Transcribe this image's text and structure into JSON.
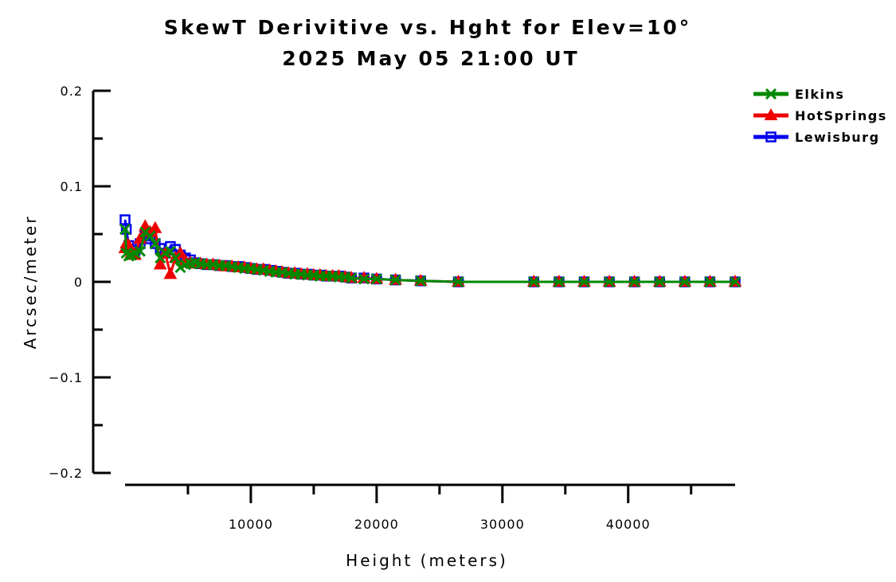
{
  "chart_data": {
    "type": "line",
    "title": "SkewT Derivitive vs. Hght for Elev=10°",
    "subtitle": "2025 May 05 21:00 UT",
    "xlabel": "Height (meters)",
    "ylabel": "Arcsec/meter",
    "xlim": [
      0,
      48500
    ],
    "ylim": [
      -0.2,
      0.2
    ],
    "x_ticks": [
      {
        "value": 10000,
        "label": "10000"
      },
      {
        "value": 20000,
        "label": "20000"
      },
      {
        "value": 30000,
        "label": "30000"
      },
      {
        "value": 40000,
        "label": "40000"
      }
    ],
    "x_minor_ticks": [
      5000,
      15000,
      25000,
      35000,
      45000
    ],
    "y_ticks": [
      {
        "value": 0.2,
        "label": "0.2"
      },
      {
        "value": 0.1,
        "label": "0.1"
      },
      {
        "value": 0,
        "label": "0"
      },
      {
        "value": -0.1,
        "label": "−0.1"
      },
      {
        "value": -0.2,
        "label": "−0.2"
      }
    ],
    "y_minor_ticks": [
      0.15,
      0.05,
      -0.05,
      -0.15
    ],
    "legend_position": "top-right",
    "grid": false,
    "series": [
      {
        "name": "Lewisburg",
        "color": "#0000ee",
        "marker": "square",
        "x": [
          0,
          100,
          300,
          500,
          800,
          1200,
          1600,
          2000,
          2400,
          2800,
          3200,
          3600,
          4000,
          4400,
          4800,
          5200,
          5600,
          6000,
          6500,
          7000,
          7500,
          8000,
          8500,
          9000,
          9500,
          10000,
          10500,
          11000,
          11500,
          12000,
          12500,
          13000,
          13500,
          14000,
          14500,
          15000,
          15500,
          16000,
          16500,
          17000,
          17500,
          18000,
          19000,
          20000,
          21500,
          23500,
          26500,
          32500,
          34500,
          36500,
          38500,
          40500,
          42500,
          44500,
          46500,
          48500
        ],
        "y": [
          0.065,
          0.055,
          0.038,
          0.03,
          0.033,
          0.04,
          0.048,
          0.045,
          0.04,
          0.035,
          0.03,
          0.037,
          0.034,
          0.028,
          0.025,
          0.023,
          0.02,
          0.019,
          0.018,
          0.018,
          0.017,
          0.017,
          0.016,
          0.016,
          0.015,
          0.014,
          0.013,
          0.013,
          0.012,
          0.011,
          0.01,
          0.009,
          0.009,
          0.008,
          0.008,
          0.007,
          0.007,
          0.006,
          0.006,
          0.006,
          0.005,
          0.004,
          0.004,
          0.003,
          0.002,
          0.001,
          0.0,
          0.0,
          0.0,
          0.0,
          0.0,
          0.0,
          0.0,
          0.0,
          0.0,
          0.0
        ]
      },
      {
        "name": "HotSprings",
        "color": "#ee0000",
        "marker": "triangle",
        "x": [
          0,
          100,
          300,
          500,
          800,
          1200,
          1600,
          2000,
          2400,
          2800,
          3200,
          3600,
          4000,
          4400,
          4800,
          5200,
          5600,
          6000,
          6500,
          7000,
          7500,
          8000,
          8500,
          9000,
          9500,
          10000,
          10500,
          11000,
          11500,
          12000,
          12500,
          13000,
          13500,
          14000,
          14500,
          15000,
          15500,
          16000,
          16500,
          17000,
          17500,
          18000,
          19000,
          20000,
          21500,
          23500,
          26500,
          32500,
          34500,
          36500,
          38500,
          40500,
          42500,
          44500,
          46500,
          48500
        ],
        "y": [
          0.035,
          0.04,
          0.038,
          0.03,
          0.028,
          0.045,
          0.058,
          0.052,
          0.056,
          0.018,
          0.03,
          0.008,
          0.025,
          0.03,
          0.022,
          0.02,
          0.019,
          0.019,
          0.018,
          0.018,
          0.017,
          0.016,
          0.016,
          0.015,
          0.015,
          0.014,
          0.013,
          0.013,
          0.012,
          0.011,
          0.01,
          0.009,
          0.009,
          0.008,
          0.008,
          0.007,
          0.007,
          0.006,
          0.006,
          0.006,
          0.005,
          0.004,
          0.004,
          0.003,
          0.002,
          0.001,
          0.0,
          0.0,
          0.0,
          0.0,
          0.0,
          0.0,
          0.0,
          0.0,
          0.0,
          0.0
        ]
      },
      {
        "name": "Elkins",
        "color": "#008800",
        "marker": "x",
        "x": [
          0,
          100,
          300,
          500,
          800,
          1200,
          1600,
          2000,
          2400,
          2800,
          3200,
          3600,
          4000,
          4400,
          4800,
          5200,
          5600,
          6000,
          6500,
          7000,
          7500,
          8000,
          8500,
          9000,
          9500,
          10000,
          10500,
          11000,
          11500,
          12000,
          12500,
          13000,
          13500,
          14000,
          14500,
          15000,
          15500,
          16000,
          16500,
          17000,
          17500,
          18000,
          19000,
          20000,
          21500,
          23500,
          26500,
          32500,
          34500,
          36500,
          38500,
          40500,
          42500,
          44500,
          46500,
          48500
        ],
        "y": [
          0.055,
          0.03,
          0.027,
          0.028,
          0.03,
          0.032,
          0.052,
          0.048,
          0.04,
          0.025,
          0.03,
          0.032,
          0.025,
          0.015,
          0.018,
          0.019,
          0.02,
          0.019,
          0.018,
          0.018,
          0.017,
          0.017,
          0.016,
          0.015,
          0.014,
          0.014,
          0.013,
          0.012,
          0.011,
          0.01,
          0.01,
          0.009,
          0.008,
          0.008,
          0.007,
          0.007,
          0.006,
          0.006,
          0.006,
          0.005,
          0.005,
          0.004,
          0.003,
          0.003,
          0.002,
          0.001,
          0.0,
          0.0,
          0.0,
          0.0,
          0.0,
          0.0,
          0.0,
          0.0,
          0.0,
          0.0
        ]
      }
    ]
  }
}
